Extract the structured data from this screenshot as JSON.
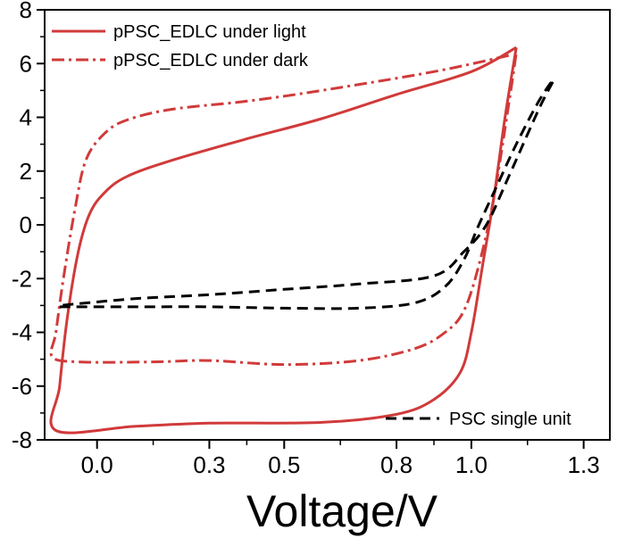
{
  "chart_data": {
    "type": "line",
    "title": "",
    "xlabel": "Voltage/V",
    "ylabel": "",
    "xlim": [
      -0.14,
      1.37
    ],
    "ylim": [
      -8,
      8
    ],
    "x_ticks": [
      {
        "value": 0.0,
        "label": "0.0"
      },
      {
        "value": 0.3,
        "label": "0.3"
      },
      {
        "value": 0.5,
        "label": "0.5"
      },
      {
        "value": 0.8,
        "label": "0.8"
      },
      {
        "value": 1.0,
        "label": "1.0"
      },
      {
        "value": 1.3,
        "label": "1.3"
      }
    ],
    "y_ticks": [
      {
        "value": -8,
        "label": "-8"
      },
      {
        "value": -6,
        "label": "-6"
      },
      {
        "value": -4,
        "label": "-4"
      },
      {
        "value": -2,
        "label": "-2"
      },
      {
        "value": 0,
        "label": "0"
      },
      {
        "value": 2,
        "label": "2"
      },
      {
        "value": 4,
        "label": "4"
      },
      {
        "value": 6,
        "label": "6"
      },
      {
        "value": 8,
        "label": "8"
      }
    ],
    "grid": false,
    "legends": [
      {
        "position": "top-left",
        "entries": [
          0,
          1
        ]
      },
      {
        "position": "bottom-right",
        "entries": [
          2
        ]
      }
    ],
    "series": [
      {
        "name": "pPSC_EDLC under light",
        "color": "#d13a3a",
        "dash": "solid",
        "points": [
          [
            1.12,
            6.6
          ],
          [
            1.0,
            5.7
          ],
          [
            0.8,
            4.85
          ],
          [
            0.6,
            3.95
          ],
          [
            0.4,
            3.2
          ],
          [
            0.2,
            2.4
          ],
          [
            0.08,
            1.8
          ],
          [
            0.02,
            1.2
          ],
          [
            -0.02,
            0.4
          ],
          [
            -0.05,
            -1.0
          ],
          [
            -0.08,
            -3.5
          ],
          [
            -0.1,
            -6.0
          ],
          [
            -0.11,
            -7.65
          ],
          [
            0.1,
            -7.5
          ],
          [
            0.3,
            -7.38
          ],
          [
            0.6,
            -7.35
          ],
          [
            0.8,
            -7.05
          ],
          [
            0.9,
            -6.5
          ],
          [
            0.97,
            -5.5
          ],
          [
            1.0,
            -4.0
          ],
          [
            1.03,
            -1.5
          ],
          [
            1.06,
            1.0
          ],
          [
            1.09,
            4.0
          ],
          [
            1.12,
            6.6
          ]
        ]
      },
      {
        "name": "pPSC_EDLC under dark",
        "color": "#d13a3a",
        "dash": "dashdot",
        "points": [
          [
            1.1,
            6.3
          ],
          [
            0.9,
            5.7
          ],
          [
            0.6,
            5.0
          ],
          [
            0.4,
            4.6
          ],
          [
            0.2,
            4.3
          ],
          [
            0.08,
            3.9
          ],
          [
            0.02,
            3.4
          ],
          [
            -0.03,
            2.4
          ],
          [
            -0.06,
            0.5
          ],
          [
            -0.09,
            -2.0
          ],
          [
            -0.11,
            -4.0
          ],
          [
            -0.12,
            -4.9
          ],
          [
            -0.05,
            -5.1
          ],
          [
            0.15,
            -5.1
          ],
          [
            0.3,
            -5.05
          ],
          [
            0.5,
            -5.2
          ],
          [
            0.7,
            -5.05
          ],
          [
            0.85,
            -4.6
          ],
          [
            0.93,
            -4.0
          ],
          [
            0.98,
            -3.2
          ],
          [
            1.02,
            -1.5
          ],
          [
            1.06,
            1.0
          ],
          [
            1.1,
            4.5
          ],
          [
            1.12,
            6.4
          ]
        ]
      },
      {
        "name": "PSC single unit",
        "color": "#000000",
        "dash": "dashed",
        "points": [
          [
            -0.1,
            -3.05
          ],
          [
            0.1,
            -3.05
          ],
          [
            0.3,
            -3.05
          ],
          [
            0.5,
            -3.1
          ],
          [
            0.7,
            -3.1
          ],
          [
            0.85,
            -2.9
          ],
          [
            0.93,
            -2.3
          ],
          [
            0.98,
            -1.3
          ],
          [
            1.02,
            0.0
          ],
          [
            1.07,
            1.5
          ],
          [
            1.12,
            3.0
          ],
          [
            1.18,
            4.6
          ],
          [
            1.22,
            5.4
          ],
          [
            1.18,
            4.3
          ],
          [
            1.1,
            1.8
          ],
          [
            1.04,
            0.0
          ],
          [
            0.98,
            -1.0
          ],
          [
            0.9,
            -1.9
          ],
          [
            0.7,
            -2.2
          ],
          [
            0.5,
            -2.4
          ],
          [
            0.3,
            -2.6
          ],
          [
            0.1,
            -2.75
          ],
          [
            -0.1,
            -3.0
          ]
        ]
      }
    ]
  }
}
